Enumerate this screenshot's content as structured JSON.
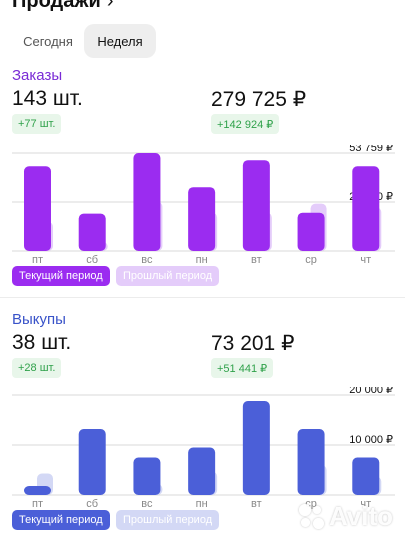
{
  "header": {
    "title": "Продажи",
    "chevron": "›"
  },
  "period_tabs": [
    "Сегодня",
    "Неделя"
  ],
  "active_tab": "Неделя",
  "orders": {
    "title": "Заказы",
    "count": "143 шт.",
    "count_delta": "+77 шт.",
    "sum": "279 725 ₽",
    "sum_delta": "+142 924 ₽",
    "legend_current": "Текущий период",
    "legend_previous": "Прошлый период"
  },
  "buyouts": {
    "title": "Выкупы",
    "count": "38 шт.",
    "count_delta": "+28 шт.",
    "sum": "73 201 ₽",
    "sum_delta": "+51 441 ₽",
    "legend_current": "Текущий период",
    "legend_previous": "Прошлый период"
  },
  "watermark": "Avito",
  "colors": {
    "orders_current": "#9b2cf0",
    "orders_previous": "#e4ccfa",
    "buyouts_current": "#4b5fd8",
    "buyouts_previous": "#d3d8f5",
    "badge_bg": "#e8f6ea",
    "badge_text": "#2fa14a"
  },
  "chart_data": [
    {
      "type": "bar",
      "title": "Заказы",
      "categories": [
        "пт",
        "сб",
        "вс",
        "пн",
        "вт",
        "ср",
        "чт"
      ],
      "series": [
        {
          "name": "Текущий период",
          "values": [
            46500,
            20500,
            53759,
            35000,
            49800,
            21000,
            46500
          ]
        },
        {
          "name": "Прошлый период",
          "values": [
            16000,
            5000,
            27000,
            21000,
            21000,
            26000,
            24000
          ]
        }
      ],
      "ylim": [
        0,
        53759
      ],
      "yticks": [
        26880,
        53759
      ],
      "ytick_labels": [
        "26 880 ₽",
        "53 759 ₽"
      ],
      "grid": true,
      "legend": "bottom-left"
    },
    {
      "type": "bar",
      "title": "Выкупы",
      "categories": [
        "пт",
        "сб",
        "вс",
        "пн",
        "вт",
        "ср",
        "чт"
      ],
      "series": [
        {
          "name": "Текущий период",
          "values": [
            1800,
            13200,
            7500,
            9500,
            18800,
            13200,
            7500
          ]
        },
        {
          "name": "Прошлый период",
          "values": [
            4300,
            0,
            2200,
            4700,
            0,
            6000,
            3700
          ]
        }
      ],
      "ylim": [
        0,
        20000
      ],
      "yticks": [
        10000,
        20000
      ],
      "ytick_labels": [
        "10 000 ₽",
        "20 000 ₽"
      ],
      "grid": true,
      "legend": "bottom-left"
    }
  ]
}
